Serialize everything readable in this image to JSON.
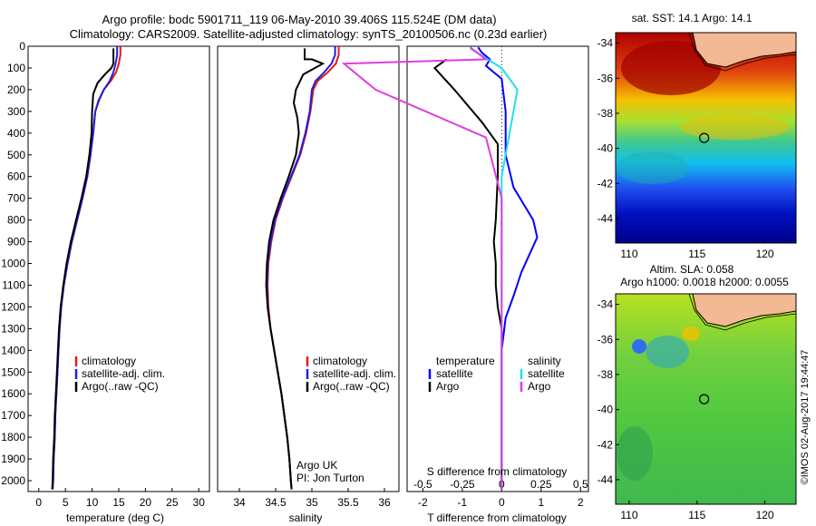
{
  "header": {
    "line1": "Argo profile: bodc 5901711_119 06-May-2010 39.406S 115.524E (DM data)",
    "line2": "Climatology: CARS2009. Satellite-adjusted climatology: synTS_20100506.nc (0.23d earlier)"
  },
  "side_label": "©IMOS 02-Aug-2017 19:44:47",
  "colors": {
    "climatology": "#e41a1c",
    "satellite": "#1f1fe0",
    "argo": "#000000",
    "t_satellite": "#0000ff",
    "s_satellite": "#22e0e6",
    "s_argo": "#e03ce0",
    "land": "#f3b894"
  },
  "chart_data": [
    {
      "type": "line",
      "xlabel": "temperature (deg C)",
      "ylabel": "",
      "xlim": [
        -2,
        32
      ],
      "ylim": [
        2050,
        0
      ],
      "xticks": [
        "0",
        "5",
        "10",
        "15",
        "20",
        "25",
        "30"
      ],
      "yticks": [
        "0",
        "100",
        "200",
        "300",
        "400",
        "500",
        "600",
        "700",
        "800",
        "900",
        "1000",
        "1100",
        "1200",
        "1300",
        "1400",
        "1500",
        "1600",
        "1700",
        "1800",
        "1900",
        "2000"
      ],
      "legend": [
        "climatology",
        "satellite-adj. clim.",
        "Argo(..raw -QC)"
      ],
      "legend_position": "lower-right",
      "series": [
        {
          "name": "climatology",
          "color": "#e41a1c",
          "points": [
            [
              15.3,
              0
            ],
            [
              15.3,
              40
            ],
            [
              15.0,
              80
            ],
            [
              14.5,
              120
            ],
            [
              13.5,
              160
            ],
            [
              12.2,
              200
            ],
            [
              11.3,
              250
            ],
            [
              10.6,
              300
            ],
            [
              10.2,
              400
            ],
            [
              9.7,
              500
            ],
            [
              9.1,
              600
            ],
            [
              8.2,
              700
            ],
            [
              7.2,
              800
            ],
            [
              6.2,
              900
            ],
            [
              5.4,
              1000
            ],
            [
              4.7,
              1100
            ],
            [
              4.2,
              1200
            ],
            [
              3.9,
              1300
            ],
            [
              3.7,
              1400
            ],
            [
              3.5,
              1500
            ],
            [
              3.3,
              1600
            ],
            [
              3.1,
              1700
            ],
            [
              3.0,
              1800
            ],
            [
              2.8,
              1900
            ],
            [
              2.7,
              2000
            ],
            [
              2.6,
              2040
            ]
          ]
        },
        {
          "name": "satellite-adj. clim.",
          "color": "#1f1fe0",
          "points": [
            [
              14.7,
              0
            ],
            [
              14.7,
              40
            ],
            [
              14.4,
              80
            ],
            [
              14.0,
              120
            ],
            [
              13.3,
              160
            ],
            [
              12.2,
              200
            ],
            [
              11.2,
              250
            ],
            [
              10.6,
              300
            ],
            [
              10.2,
              400
            ],
            [
              9.7,
              500
            ],
            [
              9.1,
              600
            ],
            [
              8.2,
              700
            ],
            [
              7.2,
              800
            ],
            [
              6.2,
              900
            ],
            [
              5.4,
              1000
            ],
            [
              4.7,
              1100
            ],
            [
              4.2,
              1200
            ],
            [
              3.9,
              1300
            ],
            [
              3.7,
              1400
            ],
            [
              3.5,
              1500
            ],
            [
              3.3,
              1600
            ],
            [
              3.1,
              1700
            ],
            [
              3.0,
              1800
            ],
            [
              2.8,
              1900
            ],
            [
              2.7,
              2000
            ],
            [
              2.6,
              2040
            ]
          ]
        },
        {
          "name": "Argo(..raw -QC)",
          "color": "#000000",
          "points": [
            [
              14.0,
              10
            ],
            [
              14.0,
              80
            ],
            [
              13.6,
              100
            ],
            [
              12.4,
              130
            ],
            [
              11.0,
              170
            ],
            [
              10.2,
              220
            ],
            [
              10.0,
              300
            ],
            [
              9.9,
              400
            ],
            [
              9.5,
              500
            ],
            [
              8.9,
              600
            ],
            [
              8.0,
              700
            ],
            [
              7.0,
              800
            ],
            [
              6.0,
              900
            ],
            [
              5.2,
              1000
            ],
            [
              4.6,
              1100
            ],
            [
              4.1,
              1200
            ],
            [
              3.8,
              1300
            ],
            [
              3.6,
              1400
            ],
            [
              3.4,
              1500
            ],
            [
              3.2,
              1600
            ],
            [
              3.0,
              1700
            ],
            [
              2.9,
              1800
            ],
            [
              2.7,
              1900
            ],
            [
              2.6,
              2000
            ],
            [
              2.5,
              2040
            ]
          ]
        }
      ]
    },
    {
      "type": "line",
      "xlabel": "salinity",
      "ylabel": "",
      "xlim": [
        33.7,
        36.2
      ],
      "ylim": [
        2050,
        0
      ],
      "xticks": [
        "34",
        "34.5",
        "35",
        "35.5",
        "36"
      ],
      "legend": [
        "climatology",
        "satellite-adj. clim.",
        "Argo(..raw -QC)"
      ],
      "legend_position": "lower-right",
      "annotation": [
        "Argo UK",
        "PI: Jon Turton"
      ],
      "series": [
        {
          "name": "climatology",
          "color": "#e41a1c",
          "points": [
            [
              35.37,
              0
            ],
            [
              35.37,
              40
            ],
            [
              35.33,
              80
            ],
            [
              35.22,
              120
            ],
            [
              35.08,
              160
            ],
            [
              35.02,
              200
            ],
            [
              34.98,
              300
            ],
            [
              34.92,
              400
            ],
            [
              34.84,
              500
            ],
            [
              34.72,
              600
            ],
            [
              34.6,
              700
            ],
            [
              34.5,
              800
            ],
            [
              34.44,
              900
            ],
            [
              34.4,
              1000
            ],
            [
              34.39,
              1100
            ],
            [
              34.4,
              1200
            ],
            [
              34.43,
              1300
            ],
            [
              34.48,
              1400
            ],
            [
              34.53,
              1500
            ],
            [
              34.58,
              1600
            ],
            [
              34.62,
              1700
            ],
            [
              34.66,
              1800
            ],
            [
              34.69,
              1900
            ],
            [
              34.71,
              2000
            ],
            [
              34.72,
              2040
            ]
          ]
        },
        {
          "name": "satellite-adj. clim.",
          "color": "#1f1fe0",
          "points": [
            [
              35.32,
              0
            ],
            [
              35.32,
              40
            ],
            [
              35.27,
              80
            ],
            [
              35.17,
              120
            ],
            [
              35.05,
              160
            ],
            [
              35.0,
              200
            ],
            [
              34.97,
              300
            ],
            [
              34.91,
              400
            ],
            [
              34.83,
              500
            ],
            [
              34.71,
              600
            ],
            [
              34.59,
              700
            ],
            [
              34.49,
              800
            ],
            [
              34.43,
              900
            ],
            [
              34.39,
              1000
            ],
            [
              34.38,
              1100
            ],
            [
              34.39,
              1200
            ],
            [
              34.43,
              1300
            ],
            [
              34.48,
              1400
            ],
            [
              34.53,
              1500
            ],
            [
              34.58,
              1600
            ],
            [
              34.62,
              1700
            ],
            [
              34.66,
              1800
            ],
            [
              34.69,
              1900
            ],
            [
              34.71,
              2000
            ],
            [
              34.72,
              2040
            ]
          ]
        },
        {
          "name": "Argo(..raw -QC)",
          "color": "#000000",
          "points": [
            [
              34.9,
              10
            ],
            [
              34.9,
              60
            ],
            [
              35.0,
              60
            ],
            [
              35.15,
              80
            ],
            [
              34.88,
              130
            ],
            [
              34.78,
              200
            ],
            [
              34.75,
              260
            ],
            [
              34.8,
              330
            ],
            [
              34.82,
              400
            ],
            [
              34.78,
              500
            ],
            [
              34.68,
              600
            ],
            [
              34.57,
              700
            ],
            [
              34.47,
              800
            ],
            [
              34.41,
              900
            ],
            [
              34.38,
              1000
            ],
            [
              34.37,
              1100
            ],
            [
              34.39,
              1200
            ],
            [
              34.43,
              1300
            ],
            [
              34.48,
              1400
            ],
            [
              34.53,
              1500
            ],
            [
              34.58,
              1600
            ],
            [
              34.62,
              1700
            ],
            [
              34.66,
              1800
            ],
            [
              34.69,
              1900
            ],
            [
              34.71,
              2000
            ],
            [
              34.72,
              2040
            ]
          ]
        }
      ]
    },
    {
      "type": "line",
      "xlabel": "T difference from climatology",
      "xlabel_top": "S difference from climatology",
      "xlim": [
        -2.4,
        2.2
      ],
      "ylim": [
        2050,
        0
      ],
      "xticks": [
        "-2",
        "-1",
        "0",
        "1",
        "2"
      ],
      "xticks_s": [
        "-0.5",
        "-0.25",
        "0",
        "0.25",
        "0.5"
      ],
      "legend_temperature": {
        "title": "temperature",
        "items": [
          "satellite",
          "Argo"
        ]
      },
      "legend_salinity": {
        "title": "salinity",
        "items": [
          "satellite",
          "Argo"
        ]
      },
      "series": [
        {
          "name": "satellite",
          "group": "temperature",
          "color": "#0000ff",
          "points": [
            [
              -0.6,
              5
            ],
            [
              -0.5,
              30
            ],
            [
              -0.3,
              60
            ],
            [
              -0.4,
              90
            ],
            [
              0.0,
              150
            ],
            [
              0.1,
              300
            ],
            [
              0.1,
              500
            ],
            [
              0.3,
              650
            ],
            [
              0.8,
              800
            ],
            [
              0.9,
              880
            ],
            [
              0.7,
              960
            ],
            [
              0.5,
              1040
            ],
            [
              0.3,
              1150
            ],
            [
              0.1,
              1250
            ],
            [
              0.0,
              1400
            ],
            [
              0.0,
              2040
            ]
          ]
        },
        {
          "name": "Argo",
          "group": "temperature",
          "color": "#000000",
          "points": [
            [
              -1.4,
              60
            ],
            [
              -1.7,
              100
            ],
            [
              -1.2,
              200
            ],
            [
              -0.5,
              350
            ],
            [
              -0.1,
              450
            ],
            [
              -0.1,
              600
            ],
            [
              -0.15,
              800
            ],
            [
              -0.2,
              900
            ],
            [
              -0.15,
              1000
            ],
            [
              -0.15,
              1100
            ],
            [
              -0.1,
              1200
            ],
            [
              0.0,
              1300
            ],
            [
              0.0,
              2040
            ]
          ]
        },
        {
          "name": "satellite",
          "group": "salinity",
          "color": "#22e0e6",
          "points": [
            [
              -0.2,
              10
            ],
            [
              0.0,
              100
            ],
            [
              0.1,
              200
            ],
            [
              0.05,
              400
            ],
            [
              0.0,
              600
            ],
            [
              0.0,
              1200
            ],
            [
              0.0,
              2040
            ]
          ]
        },
        {
          "name": "Argo",
          "group": "salinity",
          "color": "#e03ce0",
          "points": [
            [
              -0.2,
              5
            ],
            [
              -0.1,
              60
            ],
            [
              -1.0,
              80
            ],
            [
              -0.8,
              200
            ],
            [
              -0.1,
              420
            ],
            [
              0.0,
              700
            ],
            [
              0.0,
              2040
            ]
          ]
        }
      ]
    },
    {
      "type": "heatmap",
      "title": "sat. SST: 14.1  Argo: 14.1",
      "xlim": [
        109,
        122.3
      ],
      "ylim": [
        -45.4,
        -33.4
      ],
      "xticks": [
        "110",
        "115",
        "120"
      ],
      "yticks": [
        "-34",
        "-36",
        "-38",
        "-40",
        "-42",
        "-44"
      ],
      "marker": [
        115.524,
        -39.406
      ]
    },
    {
      "type": "heatmap",
      "title": "Altim. SLA: 0.058",
      "subtitle": "Argo h1000: 0.0018 h2000: 0.0055",
      "xlim": [
        109,
        122.3
      ],
      "ylim": [
        -45.4,
        -33.4
      ],
      "xticks": [
        "110",
        "115",
        "120"
      ],
      "yticks": [
        "-34",
        "-36",
        "-38",
        "-40",
        "-42",
        "-44"
      ],
      "marker": [
        115.524,
        -39.406
      ]
    }
  ]
}
